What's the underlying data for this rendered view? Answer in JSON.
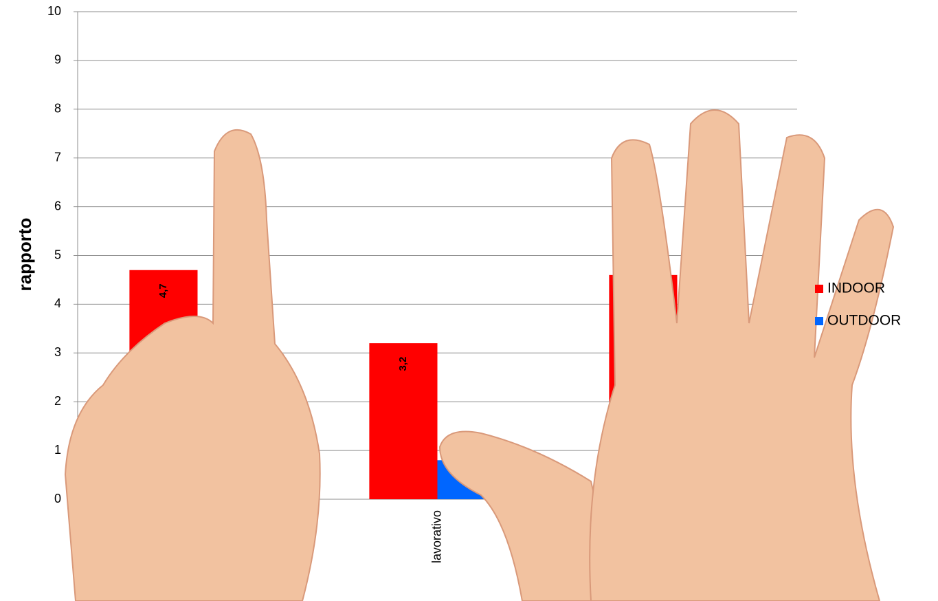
{
  "chart_data": {
    "type": "bar",
    "y_label": "rapporto",
    "categories": [
      null,
      "lavorativo",
      null
    ],
    "series": [
      {
        "name": "INDOOR",
        "color": "#ff0000",
        "values": [
          4.7,
          3.2,
          4.6
        ],
        "value_labels": [
          "4,7",
          "3,2",
          null
        ]
      },
      {
        "name": "OUTDOOR",
        "color": "#0066ff",
        "values": [
          null,
          0.8,
          null
        ]
      }
    ],
    "ylim": [
      0,
      10
    ],
    "yticks": [
      0,
      1,
      2,
      3,
      4,
      5,
      6,
      7,
      8,
      9,
      10
    ],
    "grid": true,
    "legend": "right"
  }
}
